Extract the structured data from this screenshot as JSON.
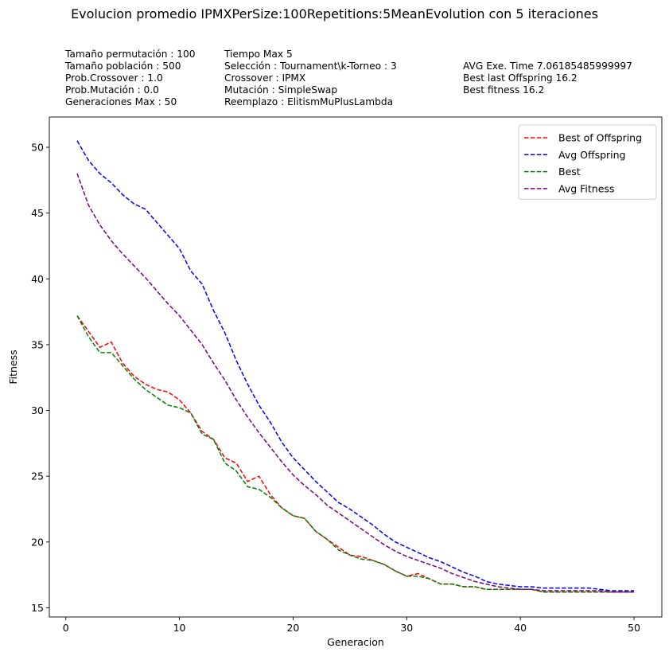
{
  "title": "Evolucion promedio IPMXPerSize:100Repetitions:5MeanEvolution con 5 iteraciones",
  "info": {
    "col1": [
      "Tamaño permutación : 100",
      "Tamaño población : 500",
      "Prob.Crossover : 1.0",
      "Prob.Mutación : 0.0",
      "Generaciones Max : 50"
    ],
    "col2": [
      "Tiempo Max 5",
      "Selección : Tournament\\k-Torneo : 3",
      "Crossover : IPMX",
      "Mutación : SimpleSwap",
      "Reemplazo : ElitismMuPlusLambda"
    ],
    "col3": [
      "AVG Exe. Time 7.06185485999997",
      "Best last Offspring 16.2",
      "Best fitness 16.2"
    ]
  },
  "chart_data": {
    "type": "line",
    "xlabel": "Generacion",
    "ylabel": "Fitness",
    "xlim": [
      -1.45,
      52.45
    ],
    "ylim": [
      14.3,
      52.3
    ],
    "xticks": [
      0,
      10,
      20,
      30,
      40,
      50
    ],
    "yticks": [
      15,
      20,
      25,
      30,
      35,
      40,
      45,
      50
    ],
    "grid": false,
    "legend": "top-right",
    "x": [
      1,
      2,
      3,
      4,
      5,
      6,
      7,
      8,
      9,
      10,
      11,
      12,
      13,
      14,
      15,
      16,
      17,
      18,
      19,
      20,
      21,
      22,
      23,
      24,
      25,
      26,
      27,
      28,
      29,
      30,
      31,
      32,
      33,
      34,
      35,
      36,
      37,
      38,
      39,
      40,
      41,
      42,
      43,
      44,
      45,
      46,
      47,
      48,
      49,
      50
    ],
    "series": [
      {
        "name": "Best of Offspring",
        "color": "#ff0000",
        "values": [
          37.2,
          36.0,
          34.8,
          35.2,
          33.6,
          32.6,
          32.0,
          31.6,
          31.4,
          30.8,
          29.8,
          28.4,
          27.8,
          26.4,
          26.0,
          24.6,
          25.0,
          23.6,
          22.6,
          22.0,
          21.8,
          20.8,
          20.2,
          19.6,
          19.0,
          18.9,
          18.6,
          18.3,
          17.8,
          17.4,
          17.6,
          17.2,
          16.8,
          16.8,
          16.6,
          16.6,
          16.4,
          16.4,
          16.4,
          16.4,
          16.4,
          16.2,
          16.2,
          16.2,
          16.2,
          16.2,
          16.2,
          16.2,
          16.2,
          16.2
        ]
      },
      {
        "name": "Avg Offspring",
        "color": "#0000ff",
        "values": [
          50.5,
          49.0,
          48.0,
          47.3,
          46.4,
          45.7,
          45.3,
          44.3,
          43.3,
          42.3,
          40.6,
          39.6,
          37.6,
          35.9,
          33.8,
          32.0,
          30.4,
          29.1,
          27.6,
          26.4,
          25.5,
          24.6,
          23.8,
          23.0,
          22.5,
          21.9,
          21.3,
          20.6,
          20.0,
          19.6,
          19.2,
          18.8,
          18.5,
          18.1,
          17.7,
          17.4,
          17.0,
          16.8,
          16.7,
          16.6,
          16.6,
          16.5,
          16.5,
          16.5,
          16.5,
          16.5,
          16.4,
          16.3,
          16.3,
          16.3
        ]
      },
      {
        "name": "Best",
        "color": "#008000",
        "values": [
          37.2,
          35.6,
          34.4,
          34.4,
          33.4,
          32.4,
          31.6,
          31.0,
          30.4,
          30.2,
          29.8,
          28.2,
          27.8,
          26.0,
          25.4,
          24.2,
          24.0,
          23.4,
          22.6,
          22.0,
          21.8,
          20.8,
          20.2,
          19.4,
          19.0,
          18.7,
          18.6,
          18.3,
          17.8,
          17.4,
          17.4,
          17.2,
          16.8,
          16.8,
          16.6,
          16.6,
          16.4,
          16.4,
          16.4,
          16.4,
          16.4,
          16.2,
          16.2,
          16.2,
          16.2,
          16.2,
          16.2,
          16.2,
          16.2,
          16.2
        ]
      },
      {
        "name": "Avg Fitness",
        "color": "#800080",
        "values": [
          48.0,
          45.6,
          44.1,
          42.9,
          41.9,
          41.0,
          40.1,
          39.1,
          38.1,
          37.2,
          36.1,
          35.0,
          33.6,
          32.3,
          30.8,
          29.5,
          28.3,
          27.2,
          26.1,
          25.1,
          24.3,
          23.6,
          22.8,
          22.2,
          21.6,
          21.0,
          20.4,
          19.8,
          19.3,
          18.9,
          18.6,
          18.3,
          18.0,
          17.6,
          17.3,
          17.0,
          16.8,
          16.6,
          16.5,
          16.4,
          16.4,
          16.3,
          16.3,
          16.3,
          16.3,
          16.3,
          16.3,
          16.2,
          16.2,
          16.2
        ]
      }
    ]
  }
}
